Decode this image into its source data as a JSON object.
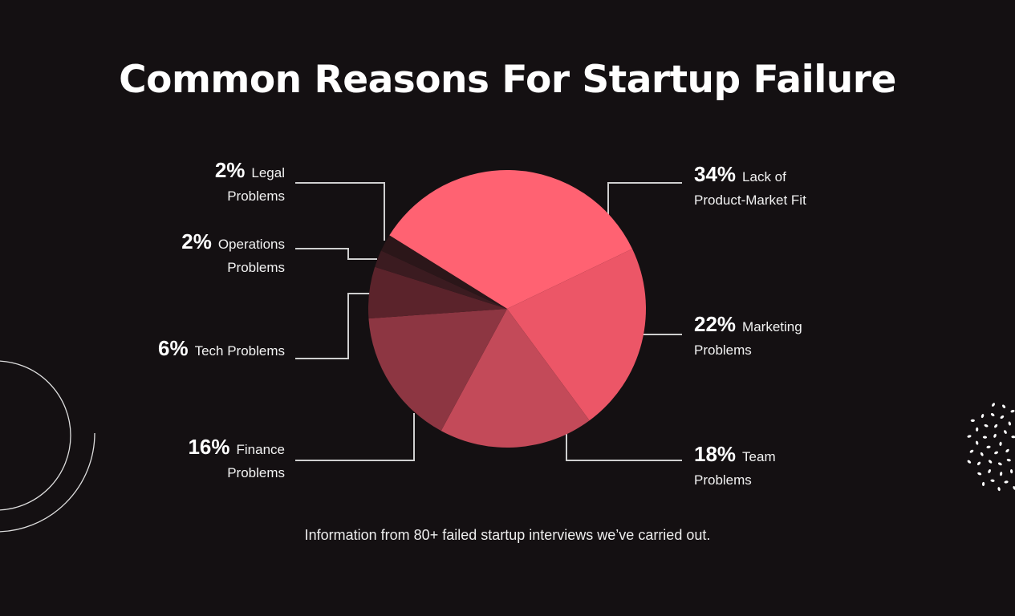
{
  "chart_data": {
    "type": "pie",
    "title": "Common Reasons For Startup Failure",
    "caption": "Information from 80+ failed startup interviews we’ve carried out.",
    "categories": [
      "Lack of Product-Market Fit",
      "Marketing Problems",
      "Team Problems",
      "Finance Problems",
      "Tech Problems",
      "Operations Problems",
      "Legal Problems"
    ],
    "values": [
      34,
      22,
      18,
      16,
      6,
      2,
      2
    ],
    "value_labels": [
      "34%",
      "22%",
      "18%",
      "16%",
      "6%",
      "2%",
      "2%"
    ],
    "colors": [
      "#ff6272",
      "#ec5667",
      "#c34a59",
      "#8d3642",
      "#5b232b",
      "#3b1b20",
      "#2b1619"
    ]
  }
}
